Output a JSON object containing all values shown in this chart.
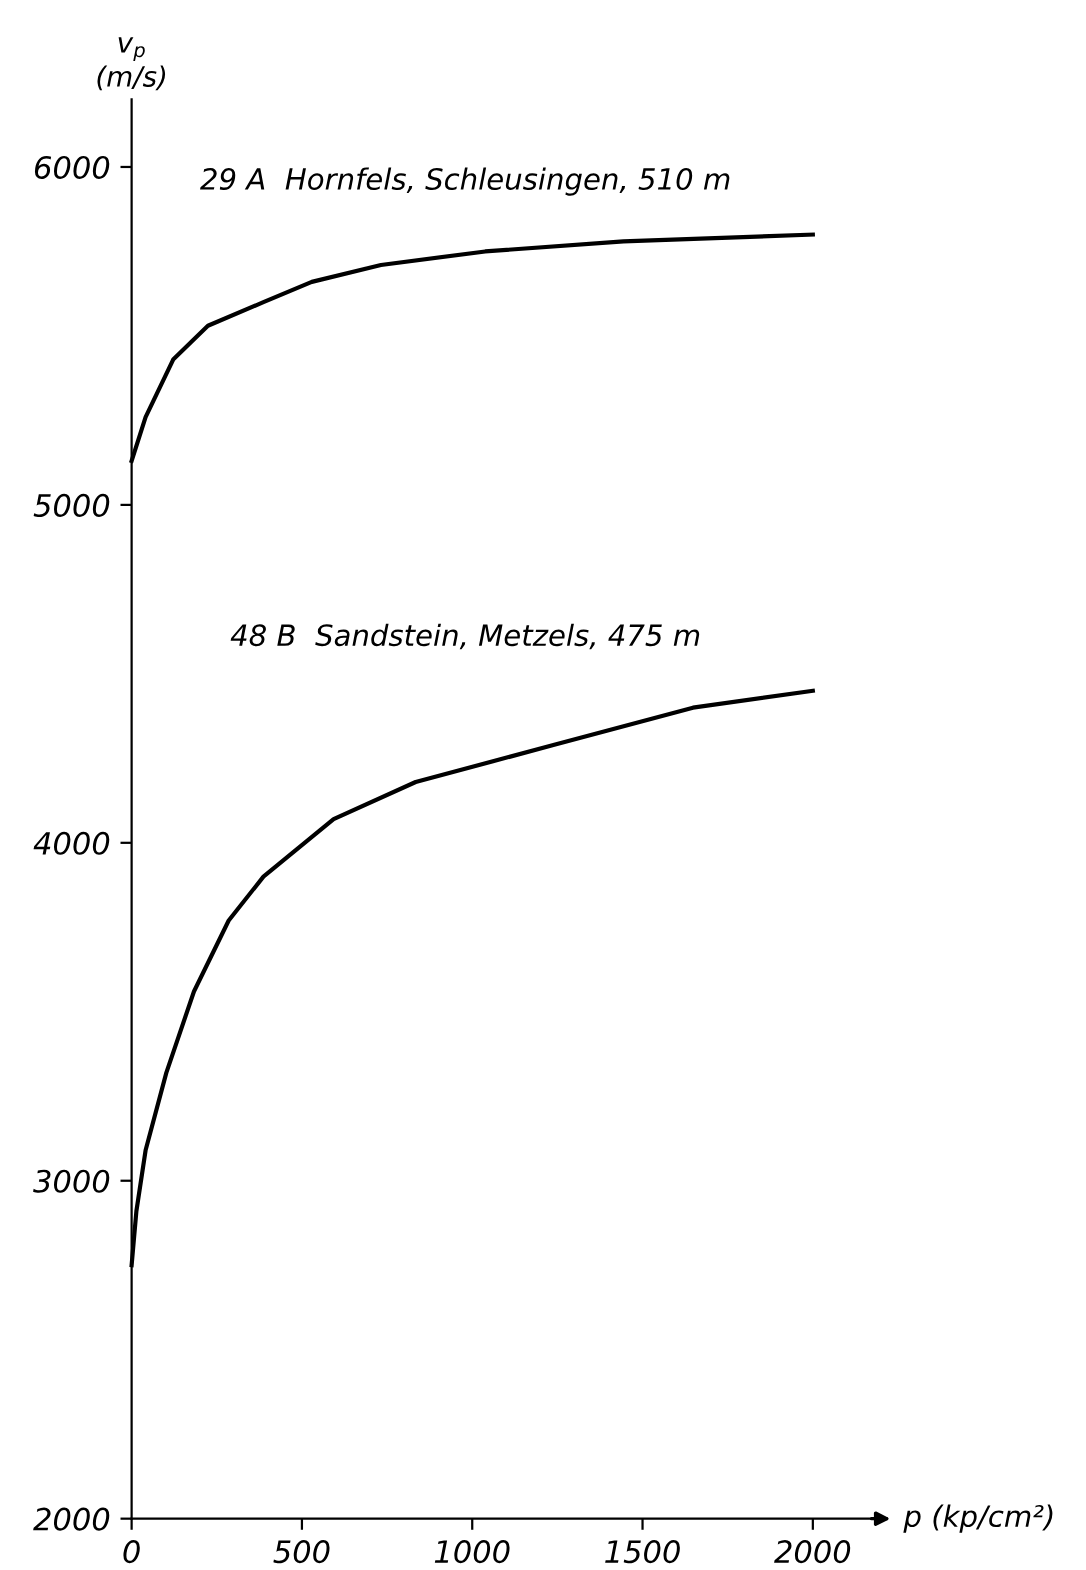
{
  "chart_data": {
    "type": "line",
    "xlabel": "p (kp/cm²)",
    "ylabel": "v$_{p}$\n(m/s)",
    "xlim": [
      0,
      2200
    ],
    "ylim": [
      2000,
      6200
    ],
    "xticks": [
      0,
      500,
      1000,
      1500,
      2000
    ],
    "yticks": [
      2000,
      3000,
      4000,
      5000,
      6000
    ],
    "grid": false,
    "legend": false,
    "marker": "none",
    "line_style": "solid",
    "series": [
      {
        "name": "29 A  Hornfels, Schleusingen, 510 m",
        "color": "#000000",
        "x": [
          0,
          41,
          122,
          224,
          387,
          529,
          732,
          1038,
          1444,
          2000
        ],
        "values": [
          5130,
          5260,
          5430,
          5530,
          5600,
          5660,
          5710,
          5750,
          5780,
          5800
        ]
      },
      {
        "name": "48 B  Sandstein, Metzels, 475 m",
        "color": "#000000",
        "x": [
          0,
          14,
          41,
          102,
          183,
          285,
          387,
          593,
          834,
          1241,
          1648,
          2000
        ],
        "values": [
          2750,
          2910,
          3090,
          3320,
          3560,
          3770,
          3900,
          4070,
          4180,
          4290,
          4400,
          4450
        ]
      }
    ]
  }
}
